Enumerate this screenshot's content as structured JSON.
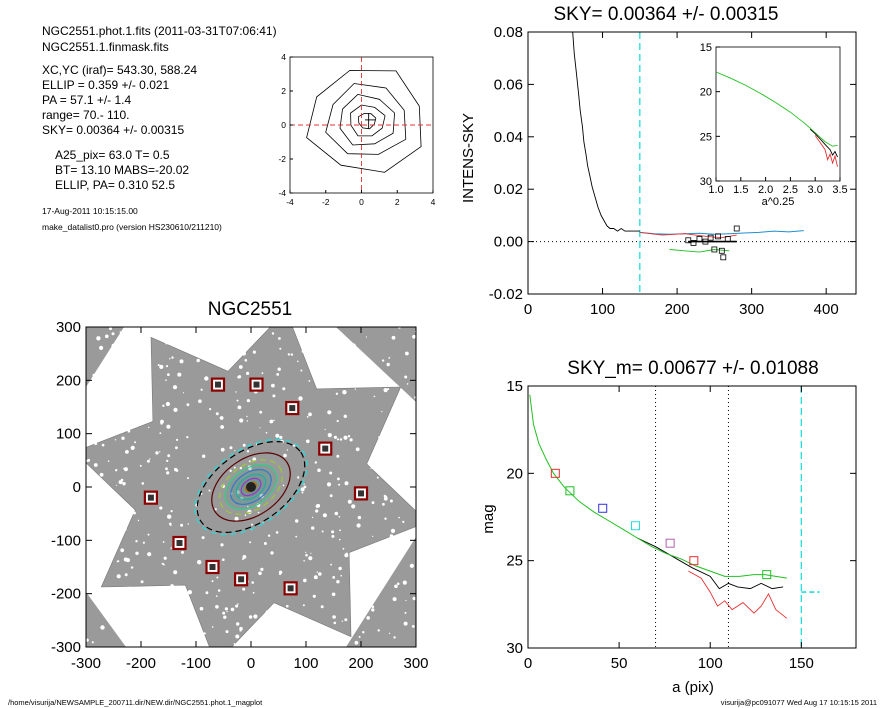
{
  "info": {
    "lines_a": [
      "NGC2551.phot.1.fits  (2011-03-31T07:06:41)",
      "NGC2551.1.finmask.fits"
    ],
    "lines_b": [
      "XC,YC (iraf)=   543.30, 588.24",
      "ELLIP = 0.359 +/- 0.021",
      "PA    =  57.1 +/-   1.4",
      "range=   70.-  110.",
      "SKY= 0.00364 +/- 0.00315"
    ],
    "lines_c": [
      "A25_pix= 63.0   T= 0.5",
      "BT=  13.10    MABS=-20.02",
      "ELLIP, PA= 0.310    52.5"
    ],
    "date": "17-Aug-2011 10:15:15.00",
    "program": "make_datalist0.pro (version HS230610/211210)"
  },
  "footer": {
    "left": "/home/visurija/NEWSAMPLE_200711.dir/NEW.dir/NGC2551.phot.1_magplot",
    "right": "visurija@pc091077  Wed Aug 17 10:15:15 2011"
  },
  "colors": {
    "cyan_dashed": "#22dddd",
    "red": "#e83030",
    "green": "#20c020",
    "blue": "#3030e0",
    "black": "#000000"
  },
  "chart_data": [
    {
      "id": "centroid",
      "type": "contour",
      "title": "",
      "xlim": [
        -4,
        4
      ],
      "ylim": [
        -4,
        4
      ],
      "x_ticks": [
        "-4",
        "-2",
        "0",
        "2",
        "4"
      ],
      "y_ticks": [
        "-4",
        "-2",
        "0",
        "2",
        "4"
      ],
      "contour_radii": [
        0.5,
        1.0,
        1.6,
        2.3,
        3.3
      ]
    },
    {
      "id": "sky",
      "type": "line",
      "title": "SKY= 0.00364 +/- 0.00315",
      "xlabel": "",
      "ylabel": "INTENS-SKY",
      "xlim": [
        0,
        440
      ],
      "ylim": [
        -0.02,
        0.08
      ],
      "x_ticks": [
        "0",
        "100",
        "200",
        "300",
        "400"
      ],
      "y_ticks": [
        "-0.02",
        "0.00",
        "0.02",
        "0.04",
        "0.06",
        "0.08"
      ],
      "x_tick_values": [
        0,
        100,
        200,
        300,
        400
      ],
      "y_tick_values": [
        -0.02,
        0,
        0.02,
        0.04,
        0.06,
        0.08
      ],
      "vline": 150,
      "profile": [
        [
          60,
          0.08
        ],
        [
          62,
          0.072
        ],
        [
          65,
          0.064
        ],
        [
          68,
          0.056
        ],
        [
          70,
          0.05
        ],
        [
          73,
          0.044
        ],
        [
          75,
          0.038
        ],
        [
          78,
          0.033
        ],
        [
          80,
          0.029
        ],
        [
          83,
          0.025
        ],
        [
          86,
          0.021
        ],
        [
          90,
          0.017
        ],
        [
          94,
          0.013
        ],
        [
          98,
          0.01
        ],
        [
          102,
          0.008
        ],
        [
          106,
          0.006
        ],
        [
          110,
          0.005
        ],
        [
          115,
          0.005
        ],
        [
          120,
          0.004
        ],
        [
          125,
          0.005
        ],
        [
          130,
          0.004
        ],
        [
          138,
          0.004
        ],
        [
          145,
          0.004
        ],
        [
          150,
          0.004
        ]
      ],
      "sky_profile": [
        [
          150,
          0.0035
        ],
        [
          170,
          0.003
        ],
        [
          190,
          0.0028
        ],
        [
          210,
          0.003
        ],
        [
          230,
          0.0032
        ],
        [
          250,
          0.0028
        ],
        [
          270,
          0.003
        ],
        [
          290,
          0.0033
        ],
        [
          310,
          0.0035
        ],
        [
          330,
          0.004
        ],
        [
          350,
          0.0037
        ],
        [
          370,
          0.0042
        ]
      ],
      "red_profile": [
        [
          150,
          0.0035
        ],
        [
          180,
          0.0025
        ],
        [
          210,
          0.003
        ],
        [
          240,
          0.002
        ],
        [
          260,
          0.0015
        ],
        [
          280,
          0.0025
        ]
      ],
      "green_profile": [
        [
          190,
          -0.003
        ],
        [
          210,
          -0.0035
        ],
        [
          230,
          -0.004
        ],
        [
          250,
          -0.003
        ],
        [
          270,
          -0.0035
        ]
      ],
      "squares": [
        [
          215,
          0.0005
        ],
        [
          222,
          -0.0005
        ],
        [
          230,
          0.001
        ],
        [
          238,
          0
        ],
        [
          245,
          0.0015
        ],
        [
          250,
          -0.003
        ],
        [
          255,
          0.002
        ],
        [
          260,
          -0.0035
        ],
        [
          262,
          -0.006
        ],
        [
          268,
          0.001
        ],
        [
          280,
          0.005
        ]
      ],
      "inset": {
        "xlabel": "a^0.25",
        "xlim": [
          1.0,
          3.5
        ],
        "ylim": [
          15,
          30
        ],
        "x_ticks": [
          "1.0",
          "1.5",
          "2.0",
          "2.5",
          "3.0",
          "3.5"
        ],
        "y_ticks": [
          "15",
          "20",
          "25",
          "30"
        ],
        "x_tick_values": [
          1.0,
          1.5,
          2.0,
          2.5,
          3.0,
          3.5
        ],
        "y_tick_values": [
          15,
          20,
          25,
          30
        ],
        "green": [
          [
            1.0,
            17.8
          ],
          [
            1.3,
            18.5
          ],
          [
            1.6,
            19.3
          ],
          [
            1.9,
            20.2
          ],
          [
            2.2,
            21.2
          ],
          [
            2.5,
            22.3
          ],
          [
            2.8,
            23.6
          ],
          [
            3.0,
            24.6
          ],
          [
            3.2,
            25.6
          ],
          [
            3.35,
            26.1
          ],
          [
            3.45,
            26.0
          ]
        ],
        "black": [
          [
            2.9,
            24.2
          ],
          [
            3.0,
            24.7
          ],
          [
            3.1,
            25.3
          ],
          [
            3.2,
            25.9
          ],
          [
            3.3,
            26.5
          ],
          [
            3.35,
            27.1
          ],
          [
            3.4,
            26.7
          ],
          [
            3.45,
            27.3
          ]
        ],
        "red": [
          [
            3.0,
            24.9
          ],
          [
            3.1,
            25.7
          ],
          [
            3.2,
            26.5
          ],
          [
            3.25,
            27.6
          ],
          [
            3.3,
            27.0
          ],
          [
            3.35,
            28.0
          ],
          [
            3.4,
            27.2
          ],
          [
            3.45,
            28.4
          ]
        ]
      }
    },
    {
      "id": "image",
      "type": "scatter",
      "title": "NGC2551",
      "xlim": [
        -300,
        300
      ],
      "ylim": [
        -300,
        300
      ],
      "x_ticks": [
        "-300",
        "-200",
        "-100",
        "0",
        "100",
        "200",
        "300"
      ],
      "y_ticks": [
        "-300",
        "-200",
        "-100",
        "0",
        "100",
        "200",
        "300"
      ],
      "tick_values": [
        -300,
        -200,
        -100,
        0,
        100,
        200,
        300
      ],
      "masked_stars": [
        [
          -60,
          192
        ],
        [
          10,
          192
        ],
        [
          75,
          148
        ],
        [
          135,
          72
        ],
        [
          200,
          -12
        ],
        [
          -182,
          -20
        ],
        [
          -130,
          -105
        ],
        [
          -70,
          -150
        ],
        [
          -18,
          -173
        ],
        [
          72,
          -190
        ]
      ],
      "ellipses": [
        {
          "a": 185,
          "b": 110,
          "color": "#22dddd",
          "dashed": true
        },
        {
          "a": 178,
          "b": 104,
          "color": "#000000",
          "dashed": true
        },
        {
          "a": 128,
          "b": 83,
          "color": "#5a0000",
          "dashed": false
        },
        {
          "a": 102,
          "b": 66,
          "color": "#99cc33",
          "dashed": true
        },
        {
          "a": 84,
          "b": 54,
          "color": "#33cc88",
          "dashed": false
        },
        {
          "a": 66,
          "b": 42,
          "color": "#3377cc",
          "dashed": false
        },
        {
          "a": 48,
          "b": 31,
          "color": "#22aaaa",
          "dashed": false
        },
        {
          "a": 32,
          "b": 21,
          "color": "#9933cc",
          "dashed": false
        },
        {
          "a": 18,
          "b": 12,
          "color": "#cc6600",
          "dashed": false
        }
      ]
    },
    {
      "id": "mag",
      "type": "line",
      "title": "SKY_m=  0.00677 +/- 0.01088",
      "xlabel": "a (pix)",
      "ylabel": "mag",
      "xlim": [
        0,
        180
      ],
      "ylim": [
        15,
        30
      ],
      "x_ticks": [
        "0",
        "50",
        "100",
        "150"
      ],
      "y_ticks": [
        "15",
        "20",
        "25",
        "30"
      ],
      "x_tick_values": [
        0,
        50,
        100,
        150
      ],
      "y_tick_values": [
        15,
        20,
        25,
        30
      ],
      "vlines_dotted": [
        70,
        110
      ],
      "vline_cyan": 150,
      "sky_level_segment": [
        [
          150,
          26.8
        ],
        [
          160,
          26.8
        ]
      ],
      "green": [
        [
          1,
          15.5
        ],
        [
          3,
          17.2
        ],
        [
          6,
          18.3
        ],
        [
          10,
          19.2
        ],
        [
          14,
          20.0
        ],
        [
          20,
          20.8
        ],
        [
          28,
          21.6
        ],
        [
          36,
          22.2
        ],
        [
          44,
          22.7
        ],
        [
          52,
          23.2
        ],
        [
          60,
          23.7
        ],
        [
          68,
          24.2
        ],
        [
          76,
          24.6
        ],
        [
          84,
          24.9
        ],
        [
          92,
          25.3
        ],
        [
          100,
          25.6
        ],
        [
          108,
          25.9
        ],
        [
          116,
          25.9
        ],
        [
          124,
          25.8
        ],
        [
          130,
          25.8
        ],
        [
          136,
          25.9
        ],
        [
          142,
          26.0
        ]
      ],
      "black": [
        [
          60,
          23.7
        ],
        [
          70,
          24.2
        ],
        [
          80,
          24.8
        ],
        [
          90,
          25.4
        ],
        [
          100,
          25.9
        ],
        [
          105,
          26.6
        ],
        [
          110,
          26.3
        ],
        [
          115,
          26.5
        ],
        [
          122,
          26.6
        ],
        [
          128,
          26.3
        ],
        [
          134,
          26.6
        ],
        [
          140,
          26.5
        ]
      ],
      "red": [
        [
          88,
          25.6
        ],
        [
          95,
          26.0
        ],
        [
          100,
          26.8
        ],
        [
          104,
          27.6
        ],
        [
          108,
          27.3
        ],
        [
          112,
          27.8
        ],
        [
          118,
          27.4
        ],
        [
          124,
          28.0
        ],
        [
          128,
          27.6
        ],
        [
          132,
          26.9
        ],
        [
          136,
          27.8
        ],
        [
          142,
          28.3
        ]
      ],
      "squares": [
        {
          "x": 15,
          "y": 20.0,
          "color": "#e83030"
        },
        {
          "x": 23,
          "y": 21.0,
          "color": "#20c020"
        },
        {
          "x": 41,
          "y": 22.0,
          "color": "#3030e0"
        },
        {
          "x": 59,
          "y": 23.0,
          "color": "#22dddd"
        },
        {
          "x": 78,
          "y": 24.0,
          "color": "#b060b0"
        },
        {
          "x": 91,
          "y": 25.0,
          "color": "#e83030"
        },
        {
          "x": 131,
          "y": 25.8,
          "color": "#20c020"
        }
      ]
    }
  ]
}
